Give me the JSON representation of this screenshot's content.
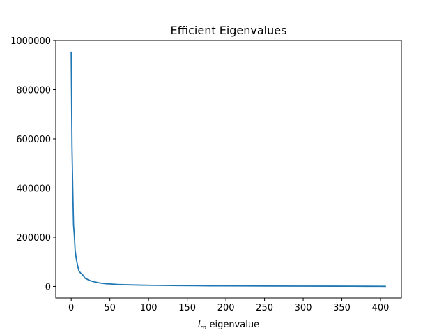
{
  "chart_data": {
    "type": "line",
    "title": "Efficient Eigenvalues",
    "xlabel_var": "l",
    "xlabel_sub": "m",
    "xlabel_rest": " eigenvalue",
    "ylabel": "",
    "xlim": [
      -20,
      427
    ],
    "ylim": [
      -47000,
      1000000
    ],
    "xticks": [
      0,
      50,
      100,
      150,
      200,
      250,
      300,
      350,
      400
    ],
    "yticks": [
      0,
      200000,
      400000,
      600000,
      800000,
      1000000
    ],
    "grid": false,
    "series": [
      {
        "color": "#1f77b4",
        "points": [
          [
            0,
            955000
          ],
          [
            1,
            570000
          ],
          [
            2,
            400000
          ],
          [
            3,
            250000
          ],
          [
            4,
            210000
          ],
          [
            5,
            150000
          ],
          [
            6,
            125000
          ],
          [
            7,
            105000
          ],
          [
            8,
            90000
          ],
          [
            9,
            75000
          ],
          [
            10,
            63000
          ],
          [
            12,
            55000
          ],
          [
            14,
            50000
          ],
          [
            16,
            42000
          ],
          [
            18,
            33000
          ],
          [
            20,
            30000
          ],
          [
            22,
            27000
          ],
          [
            25,
            23000
          ],
          [
            30,
            18500
          ],
          [
            35,
            15000
          ],
          [
            40,
            12500
          ],
          [
            45,
            11000
          ],
          [
            50,
            10000
          ],
          [
            60,
            8000
          ],
          [
            70,
            6800
          ],
          [
            80,
            6000
          ],
          [
            90,
            5300
          ],
          [
            100,
            4800
          ],
          [
            120,
            4000
          ],
          [
            140,
            3400
          ],
          [
            160,
            2900
          ],
          [
            180,
            2500
          ],
          [
            200,
            2200
          ],
          [
            230,
            1900
          ],
          [
            260,
            1600
          ],
          [
            300,
            1300
          ],
          [
            340,
            1000
          ],
          [
            380,
            700
          ],
          [
            400,
            500
          ],
          [
            407,
            300
          ]
        ]
      }
    ]
  }
}
